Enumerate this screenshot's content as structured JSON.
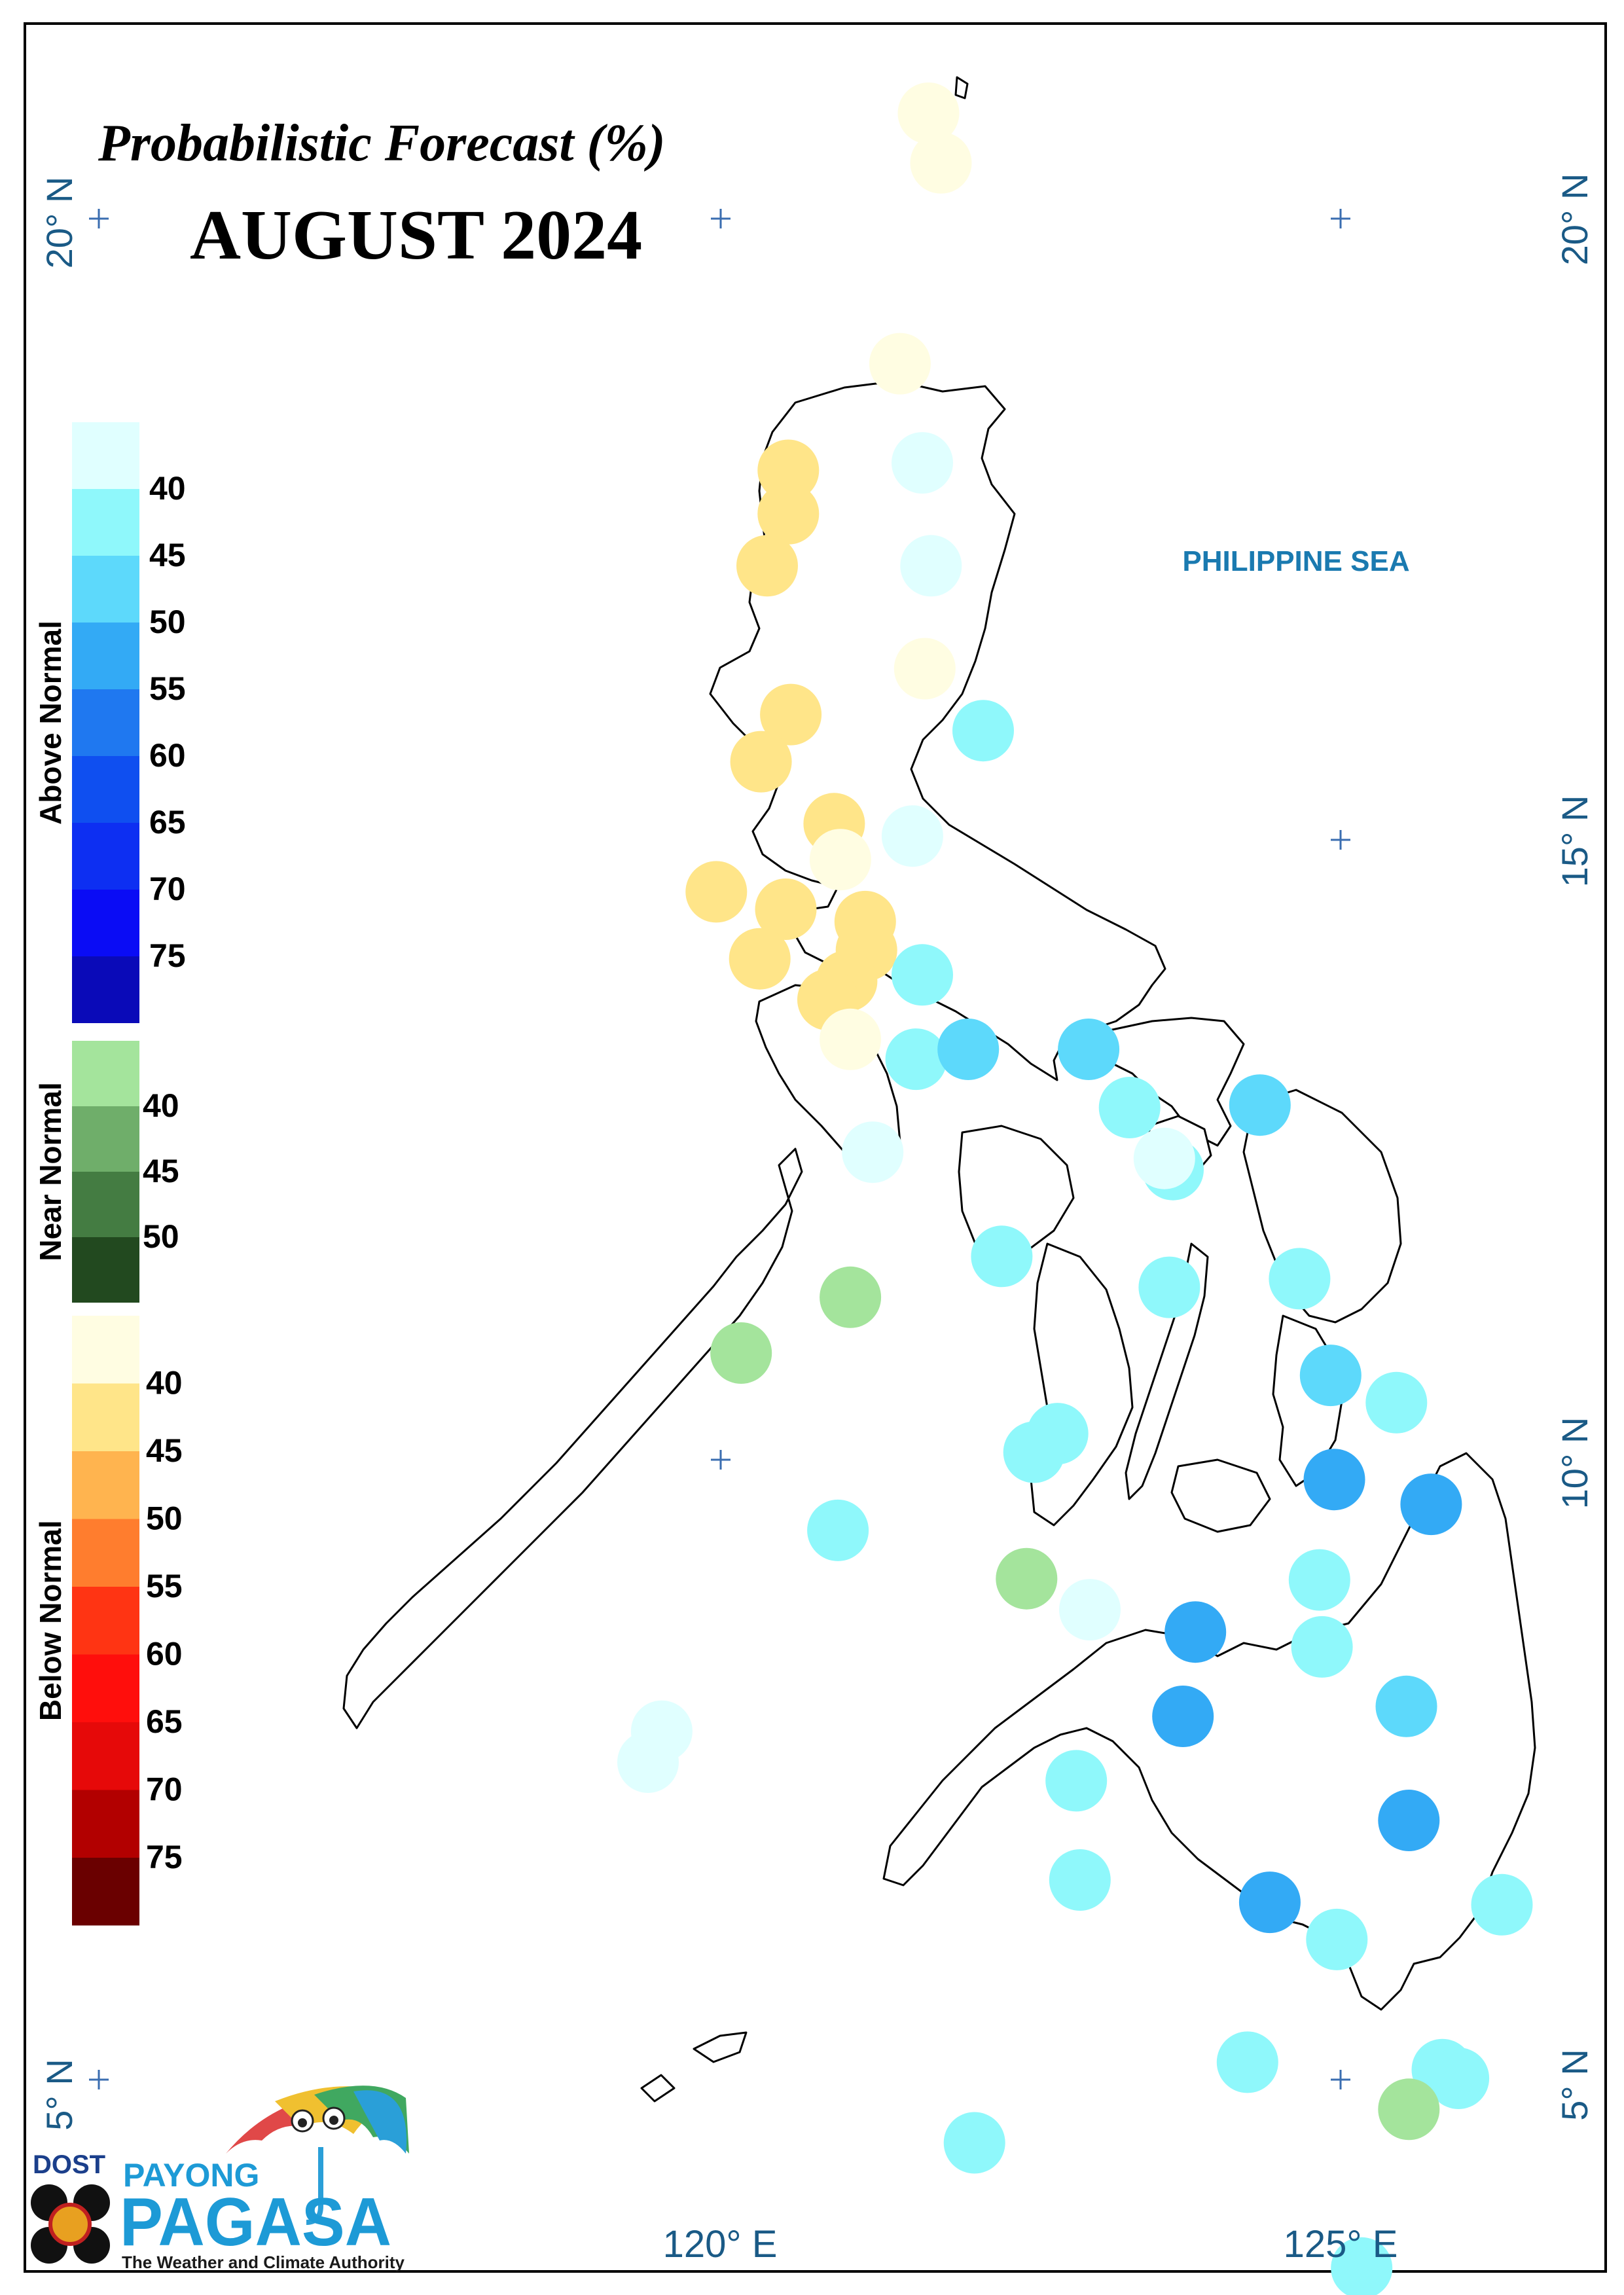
{
  "title": {
    "line1": "Probabilistic Forecast (%)",
    "line2": "AUGUST 2024"
  },
  "sea_label": "PHILIPPINE SEA",
  "axes": {
    "lat_left": [
      "20° N",
      "15° N",
      "10° N",
      "5° N"
    ],
    "lat_right": [
      "20° N",
      "15° N",
      "10° N",
      "5° N"
    ],
    "lon_bottom": [
      "120° E",
      "125° E"
    ]
  },
  "legend": {
    "above": {
      "title": "Above Normal",
      "labels": [
        "40",
        "45",
        "50",
        "55",
        "60",
        "65",
        "70",
        "75"
      ],
      "colors": [
        "#e0ffff",
        "#8ff8fb",
        "#5dd9fb",
        "#33aaf5",
        "#1f78f0",
        "#0f4ff0",
        "#0d2ff2",
        "#0a0cf5",
        "#0a0ab8"
      ]
    },
    "near": {
      "title": "Near Normal",
      "labels": [
        "40",
        "45",
        "50"
      ],
      "colors": [
        "#a4e49c",
        "#6fae6a",
        "#447c42",
        "#22491f"
      ]
    },
    "below": {
      "title": "Below Normal",
      "labels": [
        "40",
        "45",
        "50",
        "55",
        "60",
        "65",
        "70",
        "75"
      ],
      "colors": [
        "#fffde2",
        "#ffe589",
        "#ffb44f",
        "#ff7d2e",
        "#ff3413",
        "#ff0e0c",
        "#e60909",
        "#b20000",
        "#6a0000"
      ]
    }
  },
  "logo": {
    "dost": "DOST",
    "payong": "PAYONG",
    "pagasa": "PAGASA",
    "tagline": "The Weather and Climate Authority"
  },
  "stations": [
    {
      "lon": 121.68,
      "lat": 20.85,
      "cat": "below",
      "c": "#fffde2"
    },
    {
      "lon": 121.78,
      "lat": 20.45,
      "cat": "below",
      "c": "#fffde2"
    },
    {
      "lon": 121.45,
      "lat": 18.83,
      "cat": "below",
      "c": "#fffde2"
    },
    {
      "lon": 121.63,
      "lat": 18.03,
      "cat": "above",
      "c": "#e0ffff"
    },
    {
      "lon": 121.7,
      "lat": 17.2,
      "cat": "above",
      "c": "#e0ffff"
    },
    {
      "lon": 120.55,
      "lat": 17.97,
      "cat": "below",
      "c": "#ffe589"
    },
    {
      "lon": 120.55,
      "lat": 17.62,
      "cat": "below",
      "c": "#ffe589"
    },
    {
      "lon": 120.38,
      "lat": 17.2,
      "cat": "below",
      "c": "#ffe589"
    },
    {
      "lon": 121.65,
      "lat": 16.37,
      "cat": "below",
      "c": "#fffde2"
    },
    {
      "lon": 122.12,
      "lat": 15.87,
      "cat": "above",
      "c": "#8ff8fb"
    },
    {
      "lon": 120.57,
      "lat": 16.0,
      "cat": "below",
      "c": "#ffe589"
    },
    {
      "lon": 120.33,
      "lat": 15.62,
      "cat": "below",
      "c": "#ffe589"
    },
    {
      "lon": 120.92,
      "lat": 15.12,
      "cat": "below",
      "c": "#ffe589"
    },
    {
      "lon": 121.55,
      "lat": 15.02,
      "cat": "above",
      "c": "#e0ffff"
    },
    {
      "lon": 120.97,
      "lat": 14.83,
      "cat": "below",
      "c": "#fffde2"
    },
    {
      "lon": 119.97,
      "lat": 14.57,
      "cat": "below",
      "c": "#ffe589"
    },
    {
      "lon": 120.53,
      "lat": 14.43,
      "cat": "below",
      "c": "#ffe589"
    },
    {
      "lon": 121.17,
      "lat": 14.33,
      "cat": "below",
      "c": "#ffe589"
    },
    {
      "lon": 121.18,
      "lat": 14.1,
      "cat": "below",
      "c": "#ffe589"
    },
    {
      "lon": 120.32,
      "lat": 14.03,
      "cat": "below",
      "c": "#ffe589"
    },
    {
      "lon": 121.02,
      "lat": 13.85,
      "cat": "below",
      "c": "#ffe589"
    },
    {
      "lon": 120.87,
      "lat": 13.7,
      "cat": "below",
      "c": "#ffe589"
    },
    {
      "lon": 121.63,
      "lat": 13.9,
      "cat": "above",
      "c": "#8ff8fb"
    },
    {
      "lon": 121.05,
      "lat": 13.38,
      "cat": "below",
      "c": "#fffde2"
    },
    {
      "lon": 121.58,
      "lat": 13.22,
      "cat": "above",
      "c": "#8ff8fb"
    },
    {
      "lon": 122.0,
      "lat": 13.3,
      "cat": "above",
      "c": "#5dd9fb"
    },
    {
      "lon": 122.97,
      "lat": 13.3,
      "cat": "above",
      "c": "#5dd9fb"
    },
    {
      "lon": 123.3,
      "lat": 12.83,
      "cat": "above",
      "c": "#8ff8fb"
    },
    {
      "lon": 121.23,
      "lat": 12.47,
      "cat": "above",
      "c": "#e0ffff"
    },
    {
      "lon": 123.65,
      "lat": 12.33,
      "cat": "above",
      "c": "#8ff8fb"
    },
    {
      "lon": 123.58,
      "lat": 12.42,
      "cat": "above",
      "c": "#e0ffff"
    },
    {
      "lon": 124.35,
      "lat": 12.85,
      "cat": "above",
      "c": "#5dd9fb"
    },
    {
      "lon": 122.27,
      "lat": 11.63,
      "cat": "above",
      "c": "#8ff8fb"
    },
    {
      "lon": 123.62,
      "lat": 11.38,
      "cat": "above",
      "c": "#8ff8fb"
    },
    {
      "lon": 124.67,
      "lat": 11.45,
      "cat": "above",
      "c": "#8ff8fb"
    },
    {
      "lon": 121.05,
      "lat": 11.3,
      "cat": "near",
      "c": "#a4e49c"
    },
    {
      "lon": 120.17,
      "lat": 10.85,
      "cat": "near",
      "c": "#a4e49c"
    },
    {
      "lon": 124.92,
      "lat": 10.67,
      "cat": "above",
      "c": "#5dd9fb"
    },
    {
      "lon": 125.45,
      "lat": 10.45,
      "cat": "above",
      "c": "#8ff8fb"
    },
    {
      "lon": 122.72,
      "lat": 10.2,
      "cat": "above",
      "c": "#8ff8fb"
    },
    {
      "lon": 122.53,
      "lat": 10.05,
      "cat": "above",
      "c": "#8ff8fb"
    },
    {
      "lon": 124.95,
      "lat": 9.83,
      "cat": "above",
      "c": "#33aaf5"
    },
    {
      "lon": 125.73,
      "lat": 9.63,
      "cat": "above",
      "c": "#33aaf5"
    },
    {
      "lon": 120.95,
      "lat": 9.42,
      "cat": "above",
      "c": "#8ff8fb"
    },
    {
      "lon": 122.47,
      "lat": 9.03,
      "cat": "near",
      "c": "#a4e49c"
    },
    {
      "lon": 124.83,
      "lat": 9.02,
      "cat": "above",
      "c": "#8ff8fb"
    },
    {
      "lon": 122.98,
      "lat": 8.78,
      "cat": "above",
      "c": "#e0ffff"
    },
    {
      "lon": 123.83,
      "lat": 8.6,
      "cat": "above",
      "c": "#33aaf5"
    },
    {
      "lon": 124.85,
      "lat": 8.48,
      "cat": "above",
      "c": "#8ff8fb"
    },
    {
      "lon": 125.53,
      "lat": 8.0,
      "cat": "above",
      "c": "#5dd9fb"
    },
    {
      "lon": 119.53,
      "lat": 7.8,
      "cat": "above",
      "c": "#e0ffff"
    },
    {
      "lon": 119.42,
      "lat": 7.55,
      "cat": "above",
      "c": "#e0ffff"
    },
    {
      "lon": 123.73,
      "lat": 7.92,
      "cat": "above",
      "c": "#33aaf5"
    },
    {
      "lon": 122.87,
      "lat": 7.4,
      "cat": "above",
      "c": "#8ff8fb"
    },
    {
      "lon": 125.55,
      "lat": 7.08,
      "cat": "above",
      "c": "#33aaf5"
    },
    {
      "lon": 122.9,
      "lat": 6.6,
      "cat": "above",
      "c": "#8ff8fb"
    },
    {
      "lon": 124.43,
      "lat": 6.42,
      "cat": "above",
      "c": "#33aaf5"
    },
    {
      "lon": 126.3,
      "lat": 6.4,
      "cat": "above",
      "c": "#8ff8fb"
    },
    {
      "lon": 124.97,
      "lat": 6.12,
      "cat": "above",
      "c": "#8ff8fb"
    },
    {
      "lon": 124.25,
      "lat": 5.13,
      "cat": "above",
      "c": "#8ff8fb"
    },
    {
      "lon": 125.82,
      "lat": 5.07,
      "cat": "above",
      "c": "#8ff8fb"
    },
    {
      "lon": 125.95,
      "lat": 5.0,
      "cat": "above",
      "c": "#8ff8fb"
    },
    {
      "lon": 125.55,
      "lat": 4.75,
      "cat": "near",
      "c": "#a4e49c"
    },
    {
      "lon": 122.05,
      "lat": 4.48,
      "cat": "above",
      "c": "#8ff8fb"
    },
    {
      "lon": 125.17,
      "lat": 3.47,
      "cat": "above",
      "c": "#8ff8fb"
    }
  ]
}
